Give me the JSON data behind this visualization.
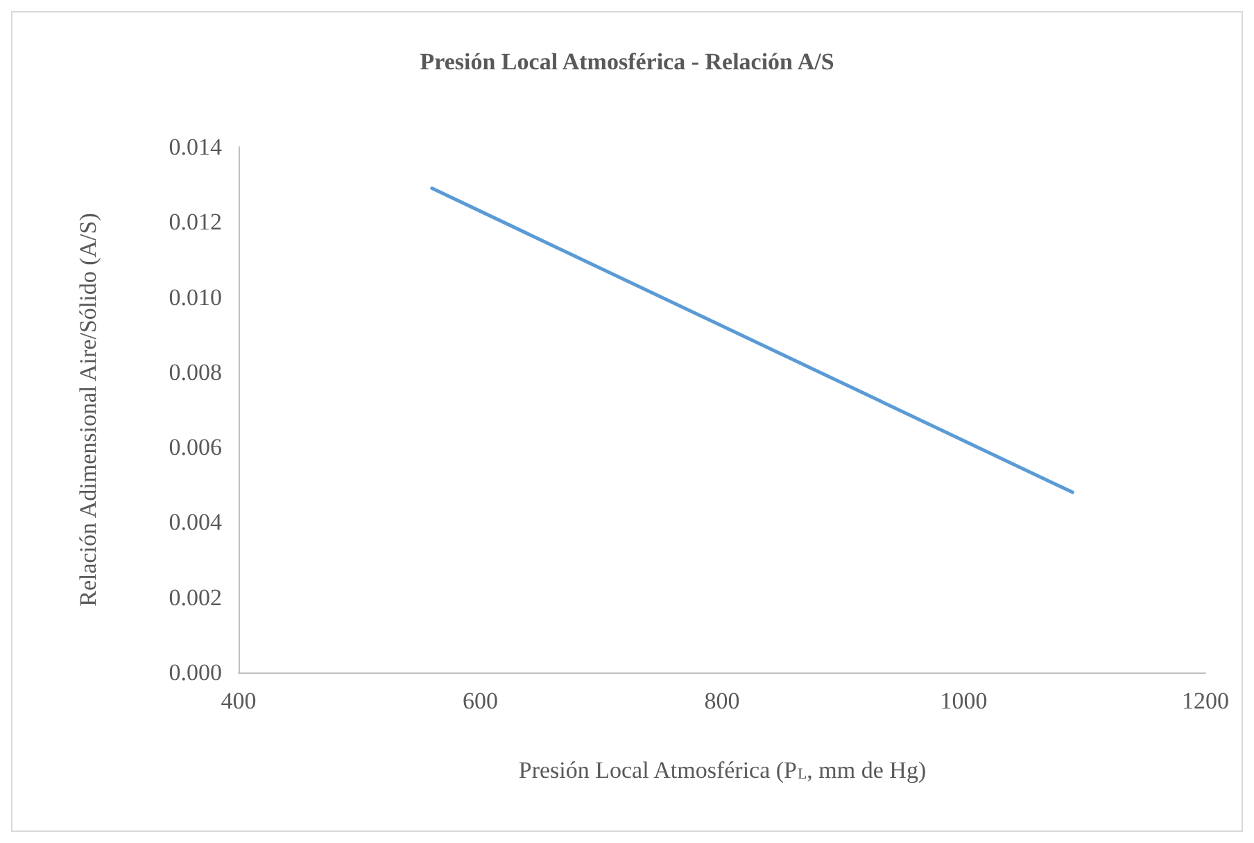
{
  "chart_data": {
    "type": "line",
    "title": "Presión Local Atmosférica - Relación A/S",
    "xlabel": "Presión Local Atmosférica (P$_{L}$, mm de Hg)",
    "ylabel": "Relación Adimensional Aire/Sólido (A/S)",
    "x": [
      560,
      1090
    ],
    "series": [
      {
        "color": "#5b9bd5",
        "values": [
          0.0129,
          0.0048
        ]
      }
    ],
    "xlim": [
      400,
      1200
    ],
    "xticks": [
      400,
      600,
      800,
      1000,
      1200
    ],
    "ylim": [
      0,
      0.014
    ],
    "yticks": [
      {
        "value": 0,
        "label": "0.000"
      },
      {
        "value": 0.002,
        "label": "0.002"
      },
      {
        "value": 0.004,
        "label": "0.004"
      },
      {
        "value": 0.006,
        "label": "0.006"
      },
      {
        "value": 0.008,
        "label": "0.008"
      },
      {
        "value": 0.01,
        "label": "0.010"
      },
      {
        "value": 0.012,
        "label": "0.012"
      },
      {
        "value": 0.014,
        "label": "0.014"
      }
    ],
    "grid": false,
    "marker": "none",
    "line_style": "solid"
  }
}
